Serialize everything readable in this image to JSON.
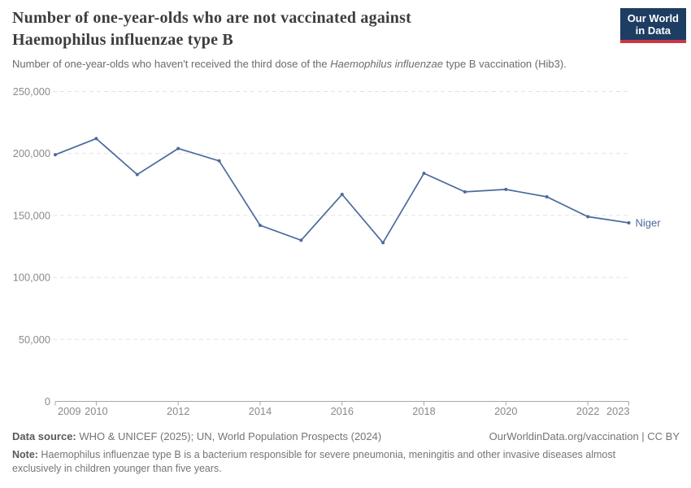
{
  "header": {
    "title_line1": "Number of one-year-olds who are not vaccinated against",
    "title_line2": "Haemophilus influenzae type B",
    "subtitle_prefix": "Number of one-year-olds who haven't received the third dose of the ",
    "subtitle_italic": "Haemophilus influenzae",
    "subtitle_suffix": " type B vaccination (Hib3).",
    "logo": {
      "line1": "Our World",
      "line2": "in Data",
      "bg": "#1d3d63",
      "accent": "#cd3646"
    }
  },
  "chart_data": {
    "type": "line",
    "title": "Number of one-year-olds who are not vaccinated against Haemophilus influenzae type B",
    "subtitle": "Number of one-year-olds who haven't received the third dose of the Haemophilus influenzae type B vaccination (Hib3).",
    "x": [
      2009,
      2010,
      2011,
      2012,
      2013,
      2014,
      2015,
      2016,
      2017,
      2018,
      2019,
      2020,
      2021,
      2022,
      2023
    ],
    "series": [
      {
        "name": "Niger",
        "color": "#4C6A9C",
        "values": [
          199000,
          212000,
          183000,
          204000,
          194000,
          142000,
          130000,
          167000,
          128000,
          184000,
          169000,
          171000,
          165000,
          149000,
          144000
        ]
      }
    ],
    "ylim": [
      0,
      250000
    ],
    "yticks": [
      {
        "value": 0,
        "label": "0"
      },
      {
        "value": 50000,
        "label": "50,000"
      },
      {
        "value": 100000,
        "label": "100,000"
      },
      {
        "value": 150000,
        "label": "150,000"
      },
      {
        "value": 200000,
        "label": "200,000"
      },
      {
        "value": 250000,
        "label": "250,000"
      }
    ],
    "xticks": [
      2009,
      2010,
      2012,
      2014,
      2016,
      2018,
      2020,
      2022,
      2023
    ],
    "grid": "horizontal-dashed",
    "legend_position": "end-of-line-label"
  },
  "footer": {
    "datasource_label": "Data source:",
    "datasource_text": " WHO & UNICEF (2025); UN, World Population Prospects (2024)",
    "rights": "OurWorldinData.org/vaccination | CC BY",
    "note_label": "Note:",
    "note_text": " Haemophilus influenzae type B is a bacterium responsible for severe pneumonia, meningitis and other invasive diseases almost exclusively in children younger than five years."
  }
}
